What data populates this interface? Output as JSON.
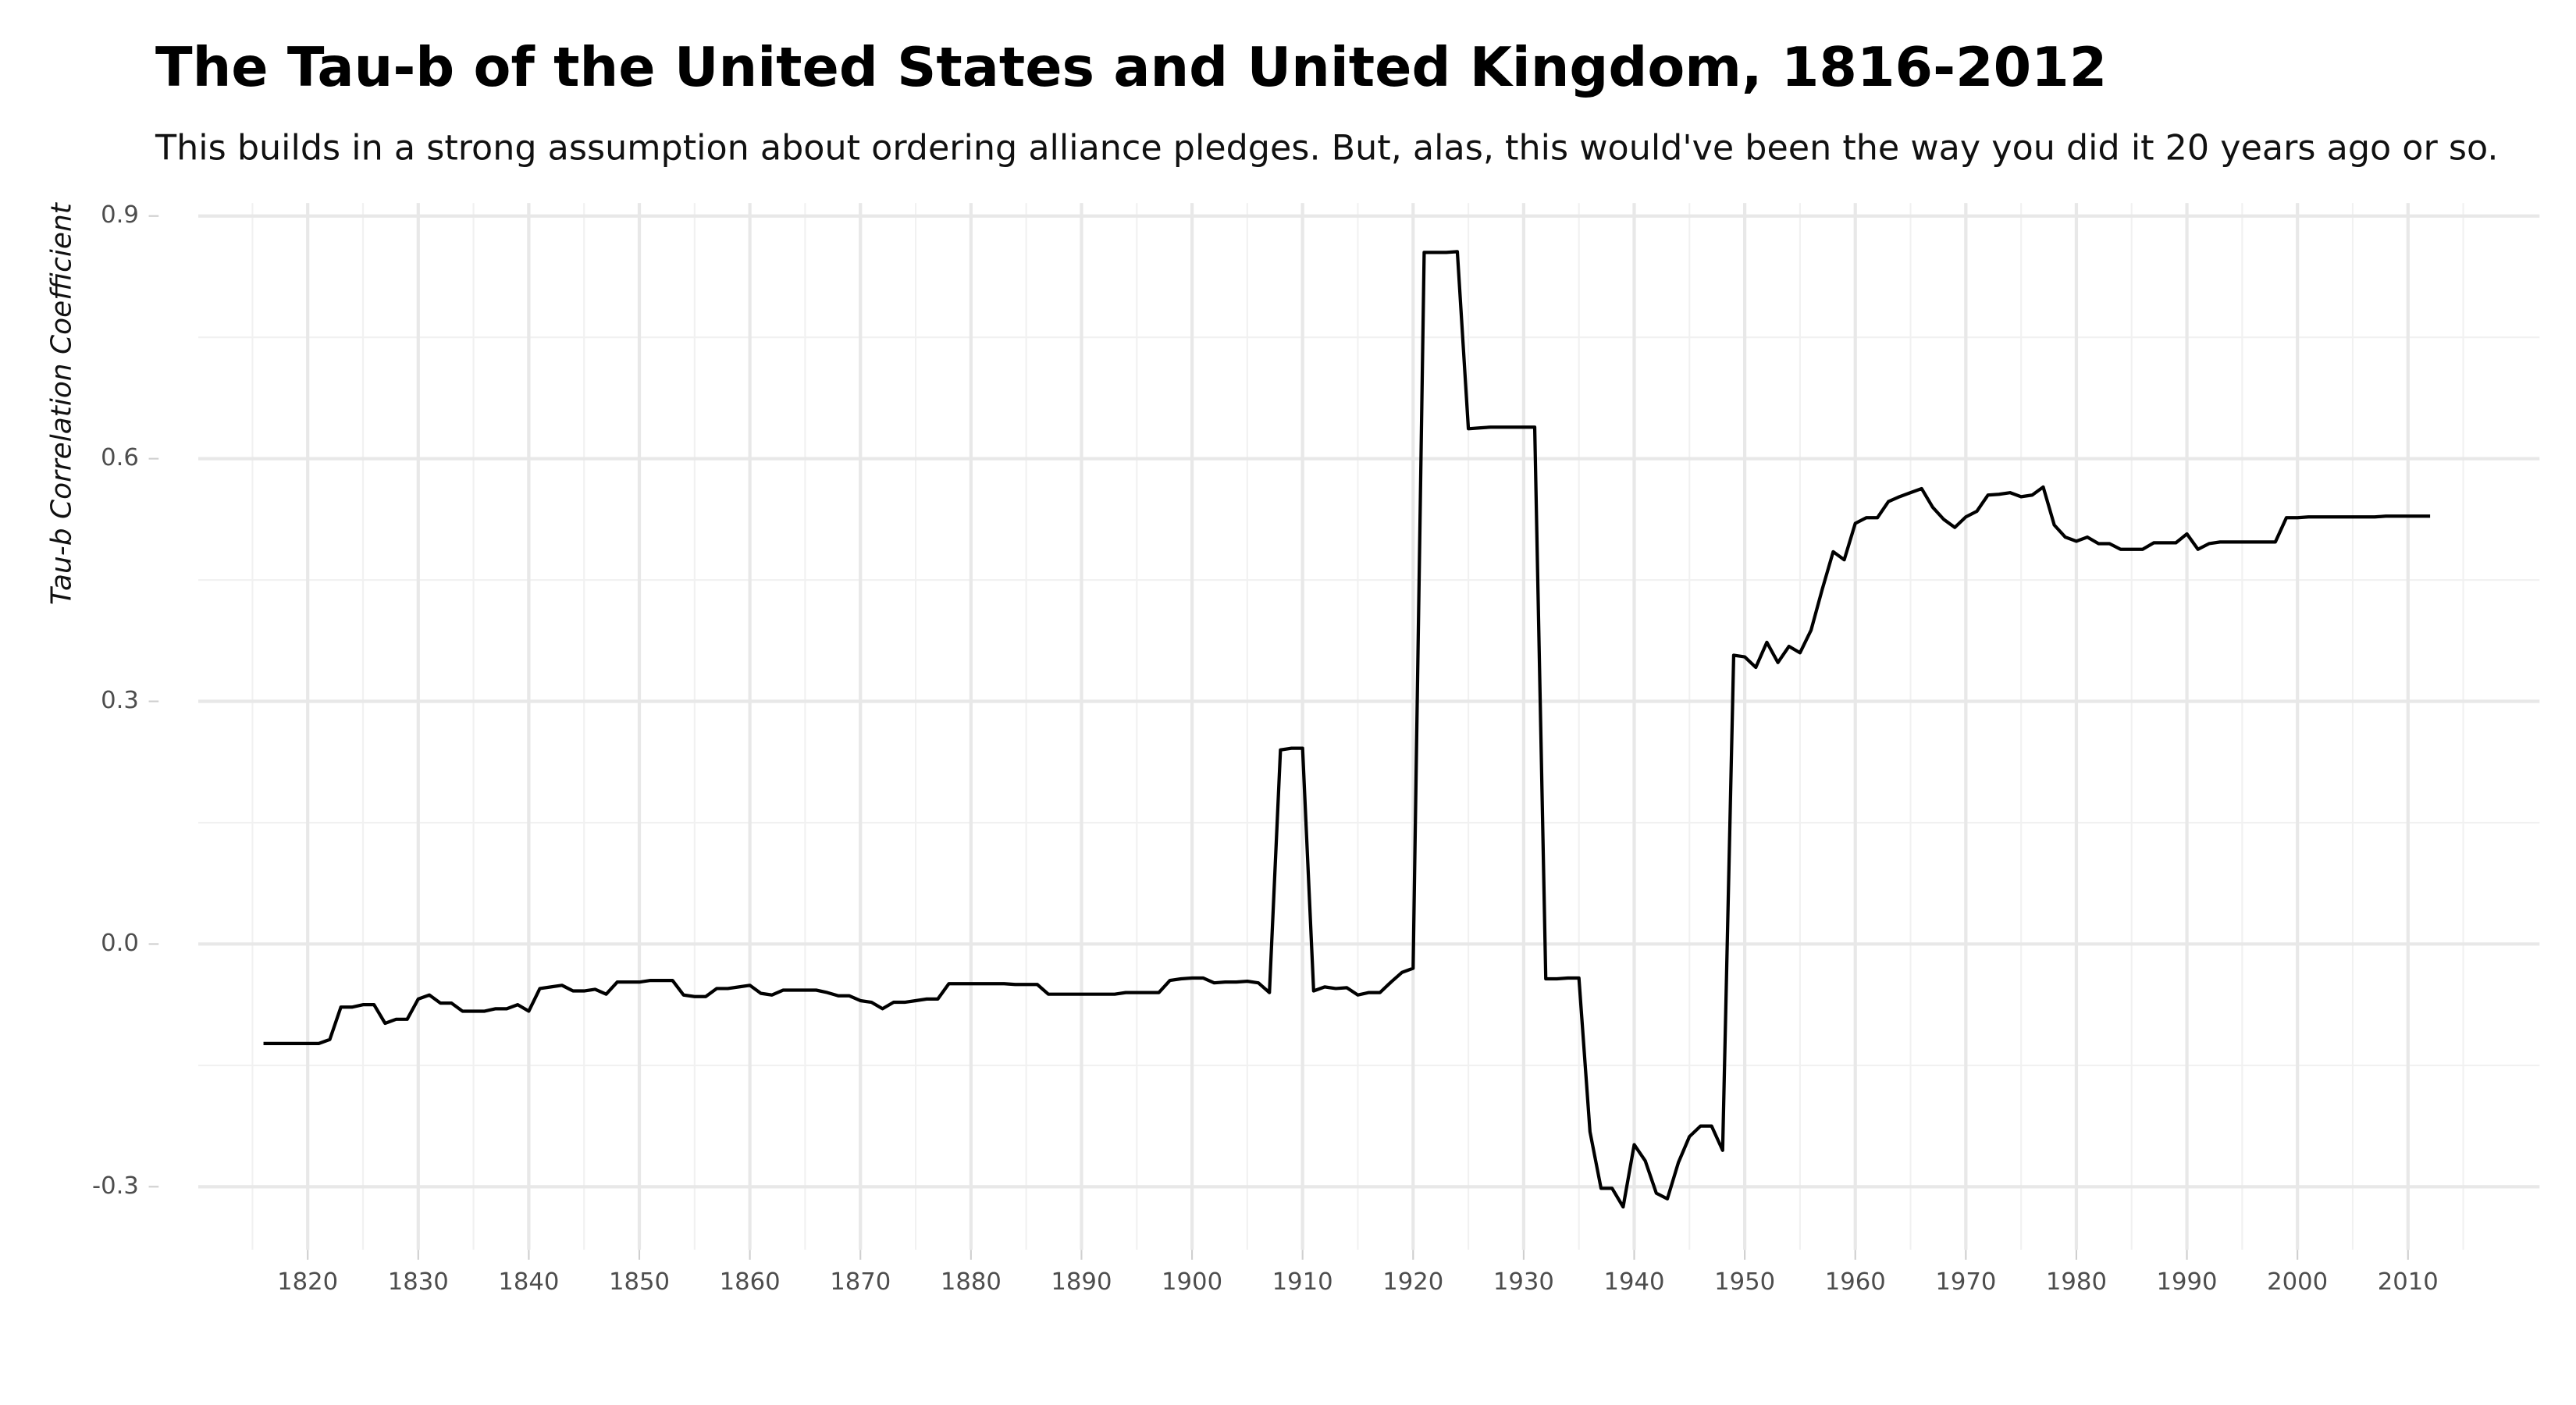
{
  "chart_data": {
    "type": "line",
    "title": "The Tau-b of the United States and United Kingdom, 1816-2012",
    "subtitle": "This builds in a strong assumption about ordering alliance pledges. But, alas, this would've been the way you did it 20 years ago or so.",
    "y_label": "Tau-b Correlation Coefficient",
    "x": [
      1816,
      1817,
      1818,
      1819,
      1820,
      1821,
      1822,
      1823,
      1824,
      1825,
      1826,
      1827,
      1828,
      1829,
      1830,
      1831,
      1832,
      1833,
      1834,
      1835,
      1836,
      1837,
      1838,
      1839,
      1840,
      1841,
      1842,
      1843,
      1844,
      1845,
      1846,
      1847,
      1848,
      1849,
      1850,
      1851,
      1852,
      1853,
      1854,
      1855,
      1856,
      1857,
      1858,
      1859,
      1860,
      1861,
      1862,
      1863,
      1864,
      1865,
      1866,
      1867,
      1868,
      1869,
      1870,
      1871,
      1872,
      1873,
      1874,
      1875,
      1876,
      1877,
      1878,
      1879,
      1880,
      1881,
      1882,
      1883,
      1884,
      1885,
      1886,
      1887,
      1888,
      1889,
      1890,
      1891,
      1892,
      1893,
      1894,
      1895,
      1896,
      1897,
      1898,
      1899,
      1900,
      1901,
      1902,
      1903,
      1904,
      1905,
      1906,
      1907,
      1908,
      1909,
      1910,
      1911,
      1912,
      1913,
      1914,
      1915,
      1916,
      1917,
      1918,
      1919,
      1920,
      1921,
      1922,
      1923,
      1924,
      1925,
      1926,
      1927,
      1928,
      1929,
      1930,
      1931,
      1932,
      1933,
      1934,
      1935,
      1936,
      1937,
      1938,
      1939,
      1940,
      1941,
      1942,
      1943,
      1944,
      1945,
      1946,
      1947,
      1948,
      1949,
      1950,
      1951,
      1952,
      1953,
      1954,
      1955,
      1956,
      1957,
      1958,
      1959,
      1960,
      1961,
      1962,
      1963,
      1964,
      1965,
      1966,
      1967,
      1968,
      1969,
      1970,
      1971,
      1972,
      1973,
      1974,
      1975,
      1976,
      1977,
      1978,
      1979,
      1980,
      1981,
      1982,
      1983,
      1984,
      1985,
      1986,
      1987,
      1988,
      1989,
      1990,
      1991,
      1992,
      1993,
      1994,
      1995,
      1996,
      1997,
      1998,
      1999,
      2000,
      2001,
      2002,
      2003,
      2004,
      2005,
      2006,
      2007,
      2008,
      2009,
      2010,
      2011,
      2012
    ],
    "series": [
      {
        "color": "#000000",
        "values": [
          -0.123,
          -0.123,
          -0.123,
          -0.123,
          -0.123,
          -0.123,
          -0.118,
          -0.078,
          -0.078,
          -0.075,
          -0.075,
          -0.098,
          -0.093,
          -0.093,
          -0.068,
          -0.063,
          -0.073,
          -0.073,
          -0.083,
          -0.083,
          -0.083,
          -0.08,
          -0.08,
          -0.075,
          -0.083,
          -0.055,
          -0.053,
          -0.051,
          -0.058,
          -0.058,
          -0.056,
          -0.062,
          -0.047,
          -0.047,
          -0.047,
          -0.045,
          -0.045,
          -0.045,
          -0.063,
          -0.065,
          -0.065,
          -0.055,
          -0.055,
          -0.053,
          -0.051,
          -0.061,
          -0.063,
          -0.057,
          -0.057,
          -0.057,
          -0.057,
          -0.06,
          -0.064,
          -0.064,
          -0.07,
          -0.072,
          -0.08,
          -0.072,
          -0.072,
          -0.07,
          -0.068,
          -0.068,
          -0.049,
          -0.049,
          -0.049,
          -0.049,
          -0.049,
          -0.049,
          -0.05,
          -0.05,
          -0.05,
          -0.062,
          -0.062,
          -0.062,
          -0.062,
          -0.062,
          -0.062,
          -0.062,
          -0.06,
          -0.06,
          -0.06,
          -0.06,
          -0.045,
          -0.043,
          -0.042,
          -0.042,
          -0.048,
          -0.047,
          -0.047,
          -0.046,
          -0.048,
          -0.06,
          0.24,
          0.242,
          0.242,
          -0.058,
          -0.053,
          -0.055,
          -0.054,
          -0.063,
          -0.06,
          -0.06,
          -0.047,
          -0.035,
          -0.03,
          0.855,
          0.855,
          0.855,
          0.856,
          0.637,
          0.638,
          0.639,
          0.639,
          0.639,
          0.639,
          0.639,
          -0.043,
          -0.043,
          -0.042,
          -0.042,
          -0.232,
          -0.302,
          -0.302,
          -0.325,
          -0.248,
          -0.268,
          -0.308,
          -0.315,
          -0.27,
          -0.238,
          -0.225,
          -0.225,
          -0.255,
          0.357,
          0.355,
          0.342,
          0.373,
          0.348,
          0.368,
          0.36,
          0.388,
          0.438,
          0.485,
          0.475,
          0.52,
          0.527,
          0.527,
          0.547,
          0.553,
          0.558,
          0.563,
          0.54,
          0.525,
          0.515,
          0.528,
          0.535,
          0.555,
          0.556,
          0.558,
          0.553,
          0.555,
          0.565,
          0.518,
          0.503,
          0.498,
          0.503,
          0.495,
          0.495,
          0.488,
          0.488,
          0.488,
          0.496,
          0.496,
          0.496,
          0.507,
          0.488,
          0.495,
          0.497,
          0.497,
          0.497,
          0.497,
          0.497,
          0.497,
          0.527,
          0.527,
          0.528,
          0.528,
          0.528,
          0.528,
          0.528,
          0.528,
          0.528,
          0.529,
          0.529,
          0.529,
          0.529,
          0.529
        ]
      }
    ],
    "xlim": [
      1810.1,
      2021.9
    ],
    "ylim": [
      -0.378,
      0.916
    ],
    "xticks": [
      1820,
      1830,
      1840,
      1850,
      1860,
      1870,
      1880,
      1890,
      1900,
      1910,
      1920,
      1930,
      1940,
      1950,
      1960,
      1970,
      1980,
      1990,
      2000,
      2010
    ],
    "yticks": [
      -0.3,
      {
        "value": 0,
        "label": "0.0"
      },
      0.3,
      0.6,
      0.9
    ],
    "x_minor_grid": [
      1815,
      1825,
      1835,
      1845,
      1855,
      1865,
      1875,
      1885,
      1895,
      1905,
      1915,
      1925,
      1935,
      1945,
      1955,
      1965,
      1975,
      1985,
      1995,
      2005,
      2015
    ],
    "y_minor_grid": [
      -0.15,
      0.15,
      0.45,
      0.75
    ],
    "grid": true
  }
}
